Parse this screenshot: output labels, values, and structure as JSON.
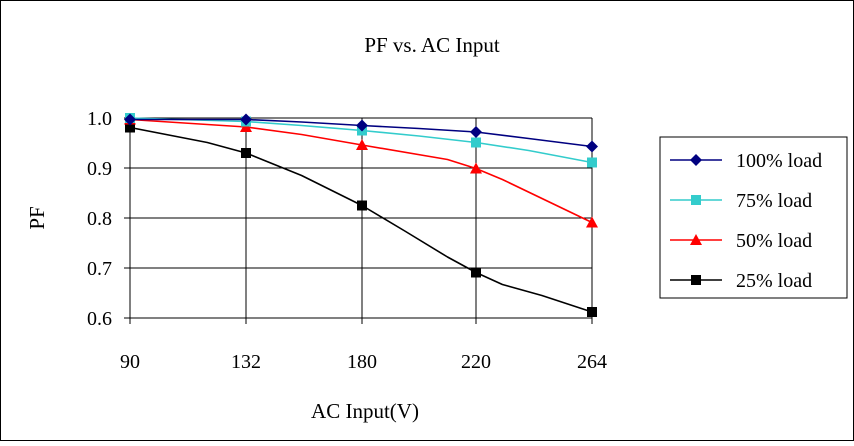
{
  "chart_data": {
    "type": "line",
    "title": "PF vs. AC Input",
    "xlabel": "AC Input(V)",
    "ylabel": "PF",
    "categories": [
      "90",
      "132",
      "180",
      "220",
      "264"
    ],
    "x": [
      90,
      132,
      180,
      220,
      264
    ],
    "yticks": [
      "1.0",
      "0.9",
      "0.8",
      "0.7",
      "0.6"
    ],
    "ylim": [
      0.6,
      1.0
    ],
    "grid": "horizontal and vertical",
    "legend_position": "right",
    "series": [
      {
        "name": "100% load",
        "color": "#000080",
        "marker": "diamond",
        "values": [
          0.997,
          0.997,
          0.985,
          0.972,
          0.943
        ],
        "curve_x": [
          90,
          132,
          155,
          180,
          200,
          220,
          240,
          264
        ],
        "curve_y": [
          0.997,
          0.997,
          0.992,
          0.985,
          0.979,
          0.972,
          0.959,
          0.943
        ]
      },
      {
        "name": "75% load",
        "color": "#33CCCC",
        "marker": "square",
        "values": [
          1.0,
          0.993,
          0.975,
          0.951,
          0.911
        ],
        "curve_x": [
          90,
          132,
          155,
          180,
          200,
          220,
          240,
          264
        ],
        "curve_y": [
          1.0,
          0.993,
          0.985,
          0.975,
          0.964,
          0.951,
          0.935,
          0.911
        ]
      },
      {
        "name": "50% load",
        "color": "#FF0000",
        "marker": "triangle",
        "values": [
          0.997,
          0.982,
          0.946,
          0.899,
          0.791
        ],
        "curve_x": [
          90,
          132,
          155,
          180,
          210,
          220,
          230,
          264
        ],
        "curve_y": [
          0.997,
          0.982,
          0.967,
          0.946,
          0.917,
          0.899,
          0.877,
          0.791
        ]
      },
      {
        "name": "25% load",
        "color": "#000000",
        "marker": "square",
        "values": [
          0.981,
          0.93,
          0.825,
          0.691,
          0.612
        ],
        "curve_x": [
          90,
          118,
          132,
          155,
          180,
          195,
          210,
          220,
          230,
          245,
          264
        ],
        "curve_y": [
          0.981,
          0.951,
          0.93,
          0.885,
          0.825,
          0.774,
          0.722,
          0.691,
          0.667,
          0.645,
          0.612
        ]
      }
    ]
  }
}
